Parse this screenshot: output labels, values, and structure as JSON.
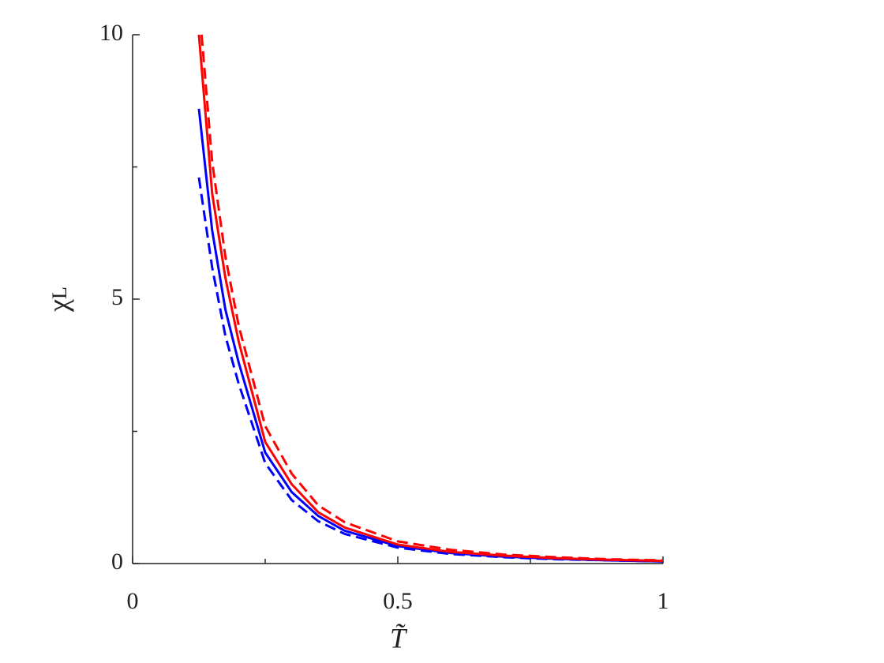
{
  "chart_data": {
    "type": "line",
    "xlabel": "T̃",
    "ylabel": {
      "symbol": "χ",
      "subscript": "L"
    },
    "xlim": [
      0,
      1
    ],
    "ylim": [
      0,
      10
    ],
    "xticks": [
      0,
      0.5,
      1
    ],
    "yticks": [
      0,
      5,
      10
    ],
    "xminorticks": [
      0.25,
      0.75
    ],
    "yminorticks": [
      2.5,
      7.5
    ],
    "grid": false,
    "series": [
      {
        "color": "#0000ff",
        "dash": "dashed",
        "x": [
          0.125,
          0.15,
          0.175,
          0.2,
          0.25,
          0.3,
          0.35,
          0.4,
          0.5,
          0.6,
          0.7,
          0.8,
          0.9,
          1.0
        ],
        "values": [
          7.3,
          5.6,
          4.3,
          3.4,
          1.9,
          1.2,
          0.8,
          0.56,
          0.3,
          0.18,
          0.12,
          0.08,
          0.06,
          0.04
        ]
      },
      {
        "color": "#0000ff",
        "dash": "solid",
        "x": [
          0.125,
          0.15,
          0.175,
          0.2,
          0.25,
          0.3,
          0.35,
          0.4,
          0.5,
          0.6,
          0.7,
          0.8,
          0.9,
          1.0
        ],
        "values": [
          8.6,
          6.3,
          4.8,
          3.8,
          2.1,
          1.35,
          0.9,
          0.62,
          0.33,
          0.2,
          0.13,
          0.09,
          0.06,
          0.04
        ]
      },
      {
        "color": "#ff0000",
        "dash": "dashed",
        "x": [
          0.13,
          0.15,
          0.175,
          0.2,
          0.25,
          0.3,
          0.35,
          0.4,
          0.5,
          0.6,
          0.7,
          0.8,
          0.9,
          1.0
        ],
        "values": [
          10,
          7.6,
          5.8,
          4.5,
          2.6,
          1.7,
          1.1,
          0.78,
          0.42,
          0.26,
          0.17,
          0.12,
          0.08,
          0.06
        ]
      },
      {
        "color": "#ff0000",
        "dash": "solid",
        "x": [
          0.125,
          0.15,
          0.175,
          0.2,
          0.25,
          0.3,
          0.35,
          0.4,
          0.5,
          0.6,
          0.7,
          0.8,
          0.9,
          1.0
        ],
        "values": [
          10,
          7.0,
          5.4,
          4.2,
          2.3,
          1.5,
          0.97,
          0.68,
          0.36,
          0.22,
          0.15,
          0.1,
          0.07,
          0.05
        ]
      }
    ]
  }
}
